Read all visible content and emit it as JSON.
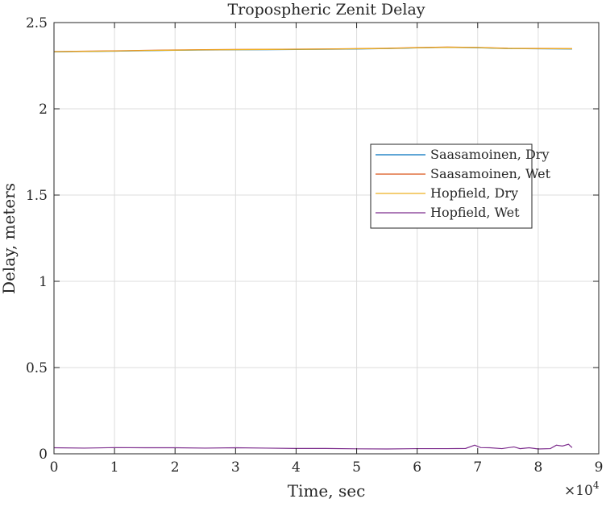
{
  "chart_data": {
    "type": "line",
    "title": "Tropospheric Zenit Delay",
    "xlabel": "Time, sec",
    "ylabel": "Delay, meters",
    "x_exponent_base": "×10",
    "x_exponent_power": "4",
    "xlim": [
      0,
      90000
    ],
    "ylim": [
      0,
      2.5
    ],
    "x_ticks": [
      0,
      10000,
      20000,
      30000,
      40000,
      50000,
      60000,
      70000,
      80000,
      90000
    ],
    "x_tick_labels": [
      "0",
      "1",
      "2",
      "3",
      "4",
      "5",
      "6",
      "7",
      "8",
      "9"
    ],
    "y_ticks": [
      0,
      0.5,
      1,
      1.5,
      2,
      2.5
    ],
    "y_tick_labels": [
      "0",
      "0.5",
      "1",
      "1.5",
      "2",
      "2.5"
    ],
    "grid": true,
    "legend_position": "right-middle",
    "series": [
      {
        "name": "Saasamoinen, Dry",
        "color": "#0072BD",
        "x": [
          0,
          5000,
          10000,
          15000,
          20000,
          25000,
          30000,
          35000,
          40000,
          45000,
          50000,
          55000,
          60000,
          65000,
          70000,
          75000,
          80000,
          85600
        ],
        "y": [
          2.33,
          2.332,
          2.334,
          2.337,
          2.339,
          2.341,
          2.342,
          2.343,
          2.344,
          2.345,
          2.347,
          2.349,
          2.353,
          2.356,
          2.354,
          2.349,
          2.348,
          2.347
        ]
      },
      {
        "name": "Saasamoinen, Wet",
        "color": "#D95319",
        "x": [
          0,
          5000,
          10000,
          15000,
          20000,
          25000,
          30000,
          35000,
          40000,
          45000,
          50000,
          55000,
          60000,
          65000,
          70000,
          75000,
          80000,
          85600
        ],
        "y": [
          2.332,
          2.334,
          2.336,
          2.339,
          2.341,
          2.343,
          2.344,
          2.345,
          2.346,
          2.347,
          2.349,
          2.351,
          2.355,
          2.358,
          2.356,
          2.351,
          2.35,
          2.349
        ]
      },
      {
        "name": "Hopfield, Dry",
        "color": "#EDB120",
        "x": [
          0,
          5000,
          10000,
          15000,
          20000,
          25000,
          30000,
          35000,
          40000,
          45000,
          50000,
          55000,
          60000,
          65000,
          70000,
          75000,
          80000,
          85600
        ],
        "y": [
          2.331,
          2.333,
          2.335,
          2.338,
          2.34,
          2.342,
          2.343,
          2.344,
          2.345,
          2.346,
          2.348,
          2.35,
          2.354,
          2.357,
          2.355,
          2.35,
          2.349,
          2.348
        ]
      },
      {
        "name": "Hopfield, Wet",
        "color": "#7E2F8E",
        "x": [
          0,
          5000,
          10000,
          15000,
          20000,
          25000,
          30000,
          35000,
          40000,
          45000,
          50000,
          55000,
          60000,
          65000,
          68000,
          69500,
          70500,
          72000,
          74000,
          76000,
          77000,
          78500,
          80000,
          82000,
          83000,
          84000,
          85000,
          85600
        ],
        "y": [
          0.035,
          0.033,
          0.036,
          0.035,
          0.035,
          0.033,
          0.035,
          0.033,
          0.031,
          0.031,
          0.029,
          0.028,
          0.03,
          0.03,
          0.031,
          0.05,
          0.036,
          0.035,
          0.03,
          0.04,
          0.03,
          0.035,
          0.028,
          0.03,
          0.05,
          0.045,
          0.055,
          0.036
        ]
      }
    ]
  }
}
